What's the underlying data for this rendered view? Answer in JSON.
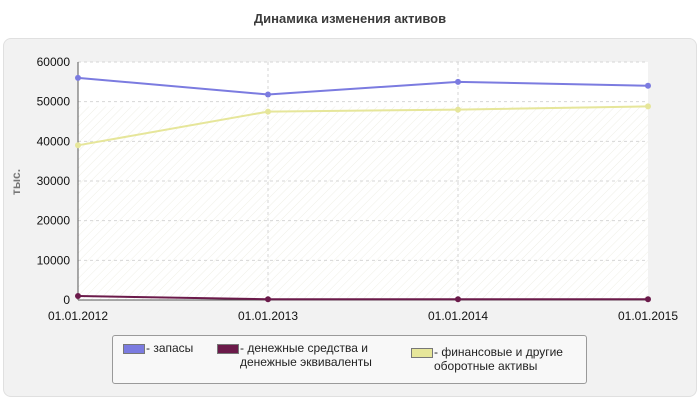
{
  "chart_data": {
    "type": "line",
    "title": "Динамика изменения активов",
    "ylabel": "тыс.",
    "xlabel": "",
    "ylim": [
      0,
      60000
    ],
    "yticks": [
      "0",
      "10000",
      "20000",
      "30000",
      "40000",
      "50000",
      "60000"
    ],
    "categories": [
      "01.01.2012",
      "01.01.2013",
      "01.01.2014",
      "01.01.2015"
    ],
    "grid": true,
    "legend_position": "bottom",
    "series": [
      {
        "name": "- запасы",
        "color": "#7b7be0",
        "values": [
          56000,
          51800,
          55000,
          54000
        ]
      },
      {
        "name": "- денежные средства и денежные эквиваленты",
        "color": "#6b1a4a",
        "values": [
          1000,
          200,
          200,
          200
        ]
      },
      {
        "name": "- финансовые и другие оборотные активы",
        "color": "#e6e69a",
        "values": [
          39000,
          47500,
          48000,
          48800
        ]
      }
    ]
  }
}
